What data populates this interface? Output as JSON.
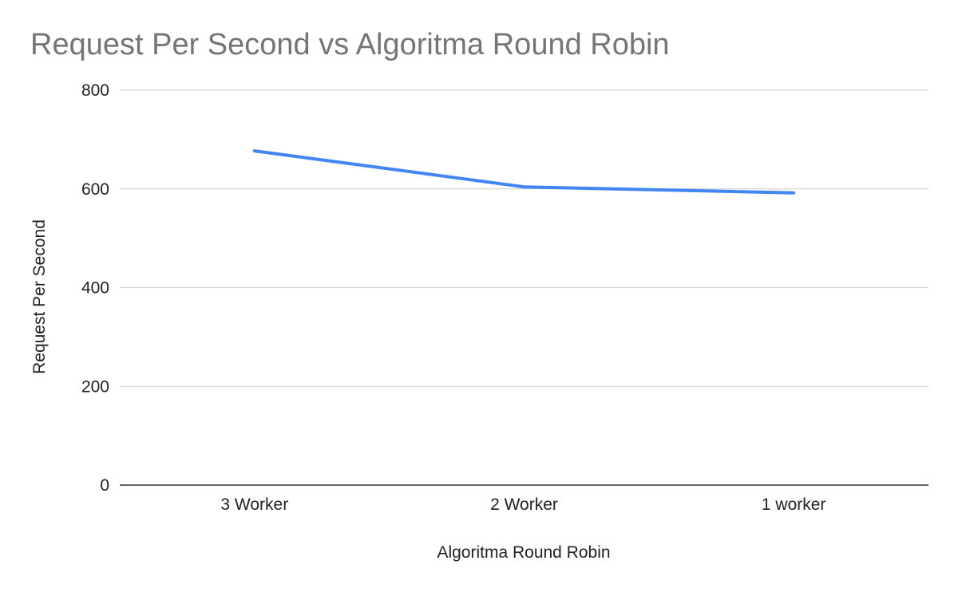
{
  "chart_data": {
    "type": "line",
    "title": "Request Per Second vs Algoritma Round Robin",
    "xlabel": "Algoritma Round Robin",
    "ylabel": "Request Per Second",
    "categories": [
      "3 Worker",
      "2 Worker",
      "1 worker"
    ],
    "series": [
      {
        "values": [
          677,
          604,
          592
        ],
        "color": "#4285f4"
      }
    ],
    "ylim": [
      0,
      800
    ],
    "yticks": [
      0,
      200,
      400,
      600,
      800
    ],
    "grid": true,
    "legend": "none"
  }
}
